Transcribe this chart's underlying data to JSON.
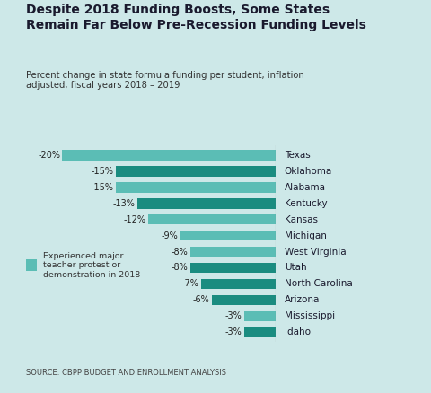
{
  "title": "Despite 2018 Funding Boosts, Some States\nRemain Far Below Pre-Recession Funding Levels",
  "subtitle": "Percent change in state formula funding per student, inflation\nadjusted, fiscal years 2018 – 2019",
  "source": "SOURCE: CBPP BUDGET AND ENROLLMENT ANALYSIS",
  "legend_label": "Experienced major\nteacher protest or\ndemonstration in 2018",
  "states": [
    "Texas",
    "Oklahoma",
    "Alabama",
    "Kentucky",
    "Kansas",
    "Michigan",
    "West Virginia",
    "Utah",
    "North Carolina",
    "Arizona",
    "Mississippi",
    "Idaho"
  ],
  "values": [
    -20,
    -15,
    -15,
    -13,
    -12,
    -9,
    -8,
    -8,
    -7,
    -6,
    -3,
    -3
  ],
  "protest": [
    true,
    false,
    true,
    false,
    true,
    true,
    true,
    false,
    false,
    false,
    true,
    false
  ],
  "color_protest": "#5bbdb5",
  "color_normal": "#1a8c80",
  "background_color": "#cde8e8",
  "title_color": "#1a1a2e",
  "subtitle_color": "#333333",
  "source_color": "#444444",
  "vline_color": "#888888",
  "xlim": [
    -21,
    0
  ]
}
